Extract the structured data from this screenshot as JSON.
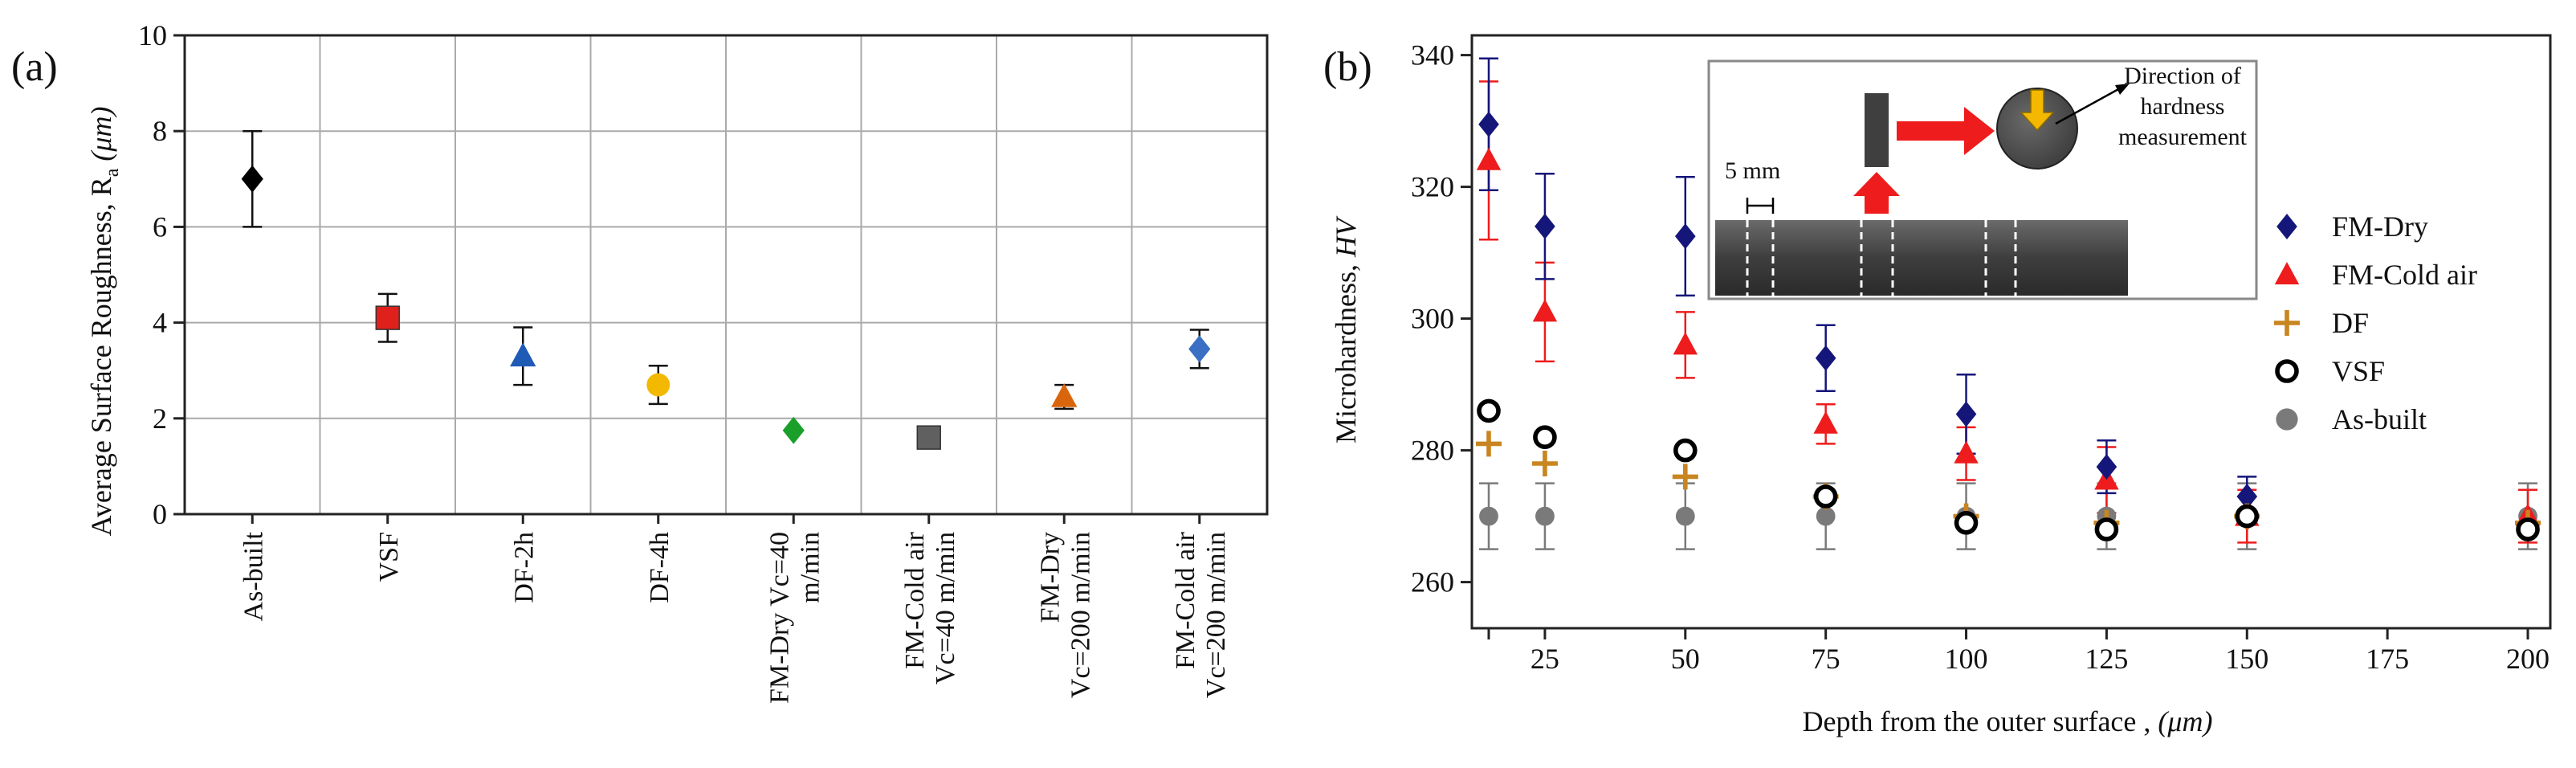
{
  "chart_data": [
    {
      "panel": "(a)",
      "type": "scatter",
      "ylabel": "Average Surface Roughness, R",
      "ylabel_sub": "a",
      "ylabel_unit": "(μm)",
      "ylim": [
        0,
        10
      ],
      "yticks": [
        "0",
        "2",
        "4",
        "6",
        "8",
        "10"
      ],
      "grid": true,
      "categories": [
        {
          "label": [
            "As-built"
          ],
          "value": 7.0,
          "err": 1.0,
          "color": "#000000",
          "marker": "diamond"
        },
        {
          "label": [
            "VSF"
          ],
          "value": 4.1,
          "err": 0.5,
          "color": "#e0201b",
          "marker": "square"
        },
        {
          "label": [
            "DF-2h"
          ],
          "value": 3.3,
          "err": 0.6,
          "color": "#1f5bb5",
          "marker": "triangle"
        },
        {
          "label": [
            "DF-4h"
          ],
          "value": 2.7,
          "err": 0.4,
          "color": "#f2b900",
          "marker": "circle"
        },
        {
          "label": [
            "FM-Dry Vc=40",
            "m/min"
          ],
          "value": 1.75,
          "err": 0,
          "color": "#1aa02a",
          "marker": "diamond"
        },
        {
          "label": [
            "FM-Cold air",
            "Vc=40 m/min"
          ],
          "value": 1.6,
          "err": 0,
          "color": "#606060",
          "marker": "square"
        },
        {
          "label": [
            "FM-Dry",
            "Vc=200 m/min"
          ],
          "value": 2.45,
          "err": 0.25,
          "color": "#d9660c",
          "marker": "triangle"
        },
        {
          "label": [
            "FM-Cold air",
            "Vc=200 m/min"
          ],
          "value": 3.45,
          "err": 0.4,
          "color": "#3a6fc4",
          "marker": "diamond"
        }
      ]
    },
    {
      "panel": "(b)",
      "type": "scatter",
      "ylabel": "Microhardness, ",
      "ylabel_unit": "HV",
      "xlabel": "Depth from the outer surface , ",
      "xlabel_unit": "(μm)",
      "xlim": [
        12,
        204
      ],
      "ylim": [
        253,
        343
      ],
      "xticks": [
        "25",
        "50",
        "75",
        "100",
        "125",
        "150",
        "175",
        "200"
      ],
      "yticks": [
        "260",
        "280",
        "300",
        "320",
        "340"
      ],
      "series": [
        {
          "name": "FM-Dry",
          "marker": "diamond",
          "color": "#15167a",
          "x": [
            15,
            25,
            50,
            75,
            100,
            125,
            150,
            200
          ],
          "y": [
            329.5,
            314,
            312.5,
            294,
            285.5,
            277.5,
            273,
            268
          ],
          "err": [
            10,
            8,
            9,
            5,
            6,
            4,
            3,
            0
          ]
        },
        {
          "name": "FM-Cold air",
          "marker": "triangle",
          "color": "#ee1c1c",
          "x": [
            15,
            25,
            50,
            75,
            100,
            125,
            150,
            200
          ],
          "y": [
            324,
            301,
            296,
            284,
            279.5,
            275.5,
            270,
            270
          ],
          "err": [
            12,
            7.5,
            5,
            3,
            4,
            5,
            4,
            4
          ]
        },
        {
          "name": "DF",
          "marker": "plus",
          "color": "#c88520",
          "x": [
            15,
            25,
            50,
            75,
            100,
            125,
            150,
            200
          ],
          "y": [
            281,
            278,
            276,
            273,
            270,
            269,
            270,
            269
          ],
          "err": [
            0,
            0,
            0,
            0,
            0,
            0,
            0,
            0
          ]
        },
        {
          "name": "VSF",
          "marker": "open-circle",
          "color": "#000000",
          "x": [
            15,
            25,
            50,
            75,
            100,
            125,
            150,
            200
          ],
          "y": [
            286,
            282,
            280,
            273,
            269,
            268,
            270,
            268
          ],
          "err": [
            0,
            0,
            0,
            0,
            0,
            0,
            0,
            0
          ]
        },
        {
          "name": "As-built",
          "marker": "circle",
          "color": "#7a7a7a",
          "x": [
            15,
            25,
            50,
            75,
            100,
            125,
            150,
            200
          ],
          "y": [
            270,
            270,
            270,
            270,
            270,
            270,
            270,
            270
          ],
          "err": [
            5,
            5,
            5,
            5,
            5,
            5,
            5,
            5
          ]
        }
      ],
      "inset": {
        "scale_label": "5 mm",
        "caption": [
          "Direction of",
          "hardness",
          "measurement"
        ]
      }
    }
  ]
}
